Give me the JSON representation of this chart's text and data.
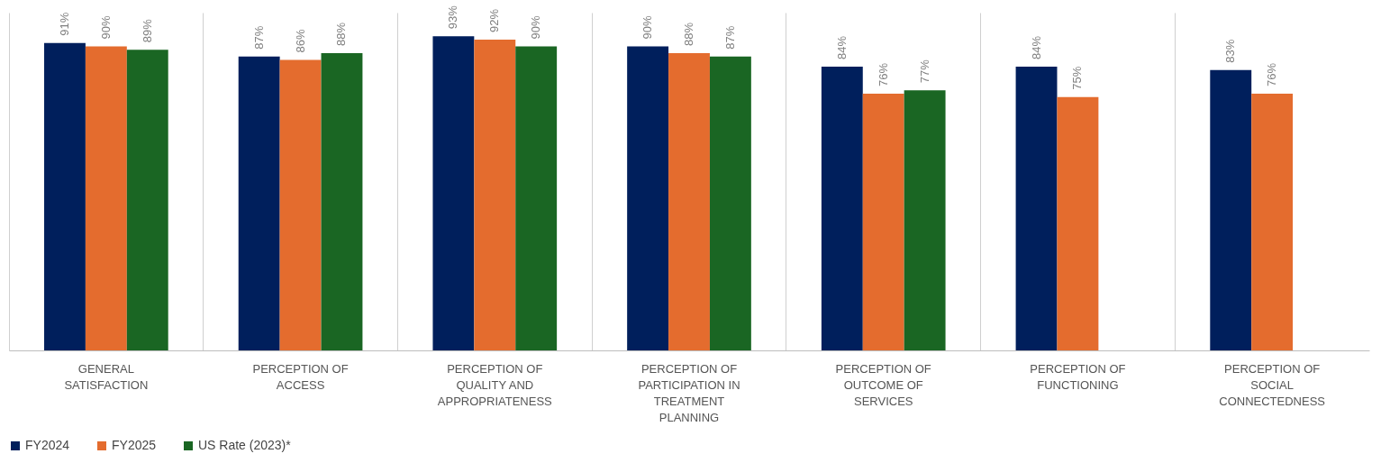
{
  "chart_data": {
    "type": "bar",
    "categories": [
      "GENERAL SATISFACTION",
      "PERCEPTION OF ACCESS",
      "PERCEPTION OF QUALITY AND APPROPRIATENESS",
      "PERCEPTION OF PARTICIPATION IN TREATMENT PLANNING",
      "PERCEPTION OF OUTCOME OF SERVICES",
      "PERCEPTION OF FUNCTIONING",
      "PERCEPTION OF SOCIAL CONNECTEDNESS"
    ],
    "series": [
      {
        "name": "FY2024",
        "color": "#001f5c",
        "values": [
          91,
          87,
          93,
          90,
          84,
          84,
          83
        ],
        "value_labels": [
          "91%",
          "87%",
          "93%",
          "90%",
          "84%",
          "84%",
          "83%"
        ]
      },
      {
        "name": "FY2025",
        "color": "#e46c2e",
        "values": [
          90,
          86,
          92,
          88,
          76,
          75,
          76
        ],
        "value_labels": [
          "90%",
          "86%",
          "92%",
          "88%",
          "76%",
          "75%",
          "76%"
        ]
      },
      {
        "name": "US Rate (2023)*",
        "color": "#1a6623",
        "values": [
          89,
          88,
          90,
          87,
          77,
          null,
          null
        ],
        "value_labels": [
          "89%",
          "88%",
          "90%",
          "87%",
          "77%",
          null,
          null
        ]
      }
    ],
    "ylim": [
      0,
      100
    ],
    "tick_labels": "x",
    "grid": "x",
    "legend": "bottom"
  }
}
